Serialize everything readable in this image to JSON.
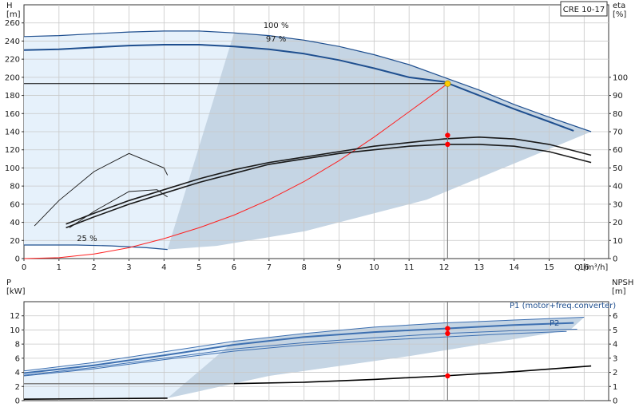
{
  "colors": {
    "background": "#ffffff",
    "grid": "#c8c8c8",
    "axis": "#333333",
    "area_light": "#e6f1fb",
    "area_dark": "#c5d5e4",
    "pump_curve": "#1f4f8f",
    "power_curve": "#3d6fb0",
    "eta_curve": "#1a1a1a",
    "system_curve": "#ff2020",
    "duty_point": "#ffcc00",
    "marker": "#ff0000",
    "guide_line": "#808080"
  },
  "chart_data": [
    {
      "type": "line",
      "id": "head-flow",
      "title": "CRE 10-17",
      "xlabel": "Q [m³/h]",
      "ylabel": "H\n[m]",
      "ylabel_right": "eta\n[%]",
      "xlim": [
        0,
        16.7
      ],
      "ylim": [
        0,
        280
      ],
      "ylim_right": [
        0,
        140
      ],
      "xticks": [
        "0",
        "1",
        "2",
        "3",
        "4",
        "5",
        "6",
        "7",
        "8",
        "9",
        "10",
        "11",
        "12",
        "13",
        "14",
        "15",
        "16"
      ],
      "yticks": [
        "0",
        "20",
        "40",
        "60",
        "80",
        "100",
        "120",
        "140",
        "160",
        "180",
        "200",
        "220",
        "240",
        "260"
      ],
      "yticks_right": [
        "0",
        "10",
        "20",
        "30",
        "40",
        "50",
        "60",
        "70",
        "80",
        "90",
        "100"
      ],
      "grid": true,
      "annotations": [
        "100 %",
        "97 %",
        "25 %"
      ],
      "series": [
        {
          "role": "head-100",
          "label": "100 %",
          "x": [
            0,
            1,
            2,
            3,
            4,
            5,
            6,
            7,
            8,
            9,
            10,
            11,
            12,
            13,
            14,
            15,
            16.2
          ],
          "y": [
            245,
            246,
            248,
            250,
            251,
            251,
            249,
            246,
            241,
            234,
            225,
            214,
            200,
            186,
            170,
            156,
            140
          ]
        },
        {
          "role": "head-97",
          "label": "97 %",
          "x": [
            0,
            1,
            2,
            3,
            4,
            5,
            6,
            7,
            8,
            9,
            10,
            11,
            12,
            13,
            14,
            15,
            15.7
          ],
          "y": [
            230,
            231,
            233,
            235,
            236,
            236,
            234,
            231,
            226,
            219,
            210,
            200,
            195,
            180,
            165,
            151,
            141
          ]
        },
        {
          "role": "head-25",
          "label": "25 %",
          "x": [
            0,
            1.5,
            2.5,
            3.5,
            4.1
          ],
          "y": [
            15,
            15,
            14,
            12,
            10
          ]
        },
        {
          "role": "system-curve",
          "x": [
            0,
            1,
            2,
            3,
            4,
            5,
            6,
            7,
            8,
            9,
            10,
            11,
            12.1
          ],
          "y": [
            0,
            1,
            5,
            12,
            22,
            34,
            48,
            65,
            85,
            108,
            134,
            162,
            193
          ]
        },
        {
          "role": "eta-100",
          "x": [
            1.2,
            2,
            3,
            4,
            5,
            6,
            7,
            8,
            9,
            10,
            11,
            12,
            13,
            14,
            15,
            16.2
          ],
          "y": [
            19,
            25,
            32,
            38,
            44,
            49,
            53,
            56,
            59,
            62,
            64,
            66,
            67,
            66,
            63,
            57
          ]
        },
        {
          "role": "eta-97",
          "x": [
            1.2,
            2,
            3,
            4,
            5,
            6,
            7,
            8,
            9,
            10,
            11,
            12,
            13,
            14,
            15,
            16.2
          ],
          "y": [
            17,
            23,
            30,
            36,
            42,
            47,
            52,
            55,
            58,
            60,
            62,
            63,
            63,
            62,
            59,
            53
          ]
        },
        {
          "role": "eta-partial",
          "x": [
            0.3,
            1,
            2,
            3,
            4,
            4.1
          ],
          "y": [
            18,
            32,
            48,
            58,
            50,
            46
          ]
        },
        {
          "role": "eta-low",
          "x": [
            1.3,
            2,
            3,
            3.8,
            4.1
          ],
          "y": [
            17,
            26,
            37,
            38,
            34
          ]
        }
      ],
      "duty_point": {
        "x": 12.1,
        "y": 193
      },
      "markers": [
        {
          "x": 12.1,
          "y": 136,
          "axis": "right",
          "eta": 68
        },
        {
          "x": 12.1,
          "y": 126,
          "axis": "right",
          "eta": 63
        }
      ]
    },
    {
      "type": "line",
      "id": "power-npsh",
      "ylabel": "P\n[kW]",
      "ylabel_right": "NPSH\n[m]",
      "xlim": [
        0,
        16.7
      ],
      "ylim": [
        0,
        14
      ],
      "ylim_right": [
        0,
        7
      ],
      "yticks": [
        "0",
        "2",
        "4",
        "6",
        "8",
        "10",
        "12"
      ],
      "yticks_right": [
        "0",
        "1",
        "2",
        "3",
        "4",
        "5",
        "6"
      ],
      "grid": true,
      "series": [
        {
          "role": "P1-100",
          "name": "P1 (motor+freq.converter)",
          "x": [
            0,
            2,
            4,
            6,
            8,
            10,
            12,
            14,
            16
          ],
          "y": [
            4.2,
            5.4,
            6.9,
            8.4,
            9.5,
            10.4,
            11.0,
            11.4,
            11.8
          ]
        },
        {
          "role": "P1-97",
          "x": [
            0,
            2,
            4,
            6,
            8,
            10,
            12,
            14,
            15.7
          ],
          "y": [
            3.9,
            5.0,
            6.4,
            7.9,
            9.0,
            9.7,
            10.2,
            10.7,
            11.0
          ]
        },
        {
          "role": "P2",
          "name": "P2",
          "x": [
            0,
            2,
            4,
            6,
            8,
            10,
            12,
            14,
            15.8
          ],
          "y": [
            3.6,
            4.7,
            6.0,
            7.3,
            8.2,
            8.9,
            9.5,
            9.9,
            10.1
          ]
        },
        {
          "role": "P2-97",
          "x": [
            0,
            2,
            4,
            6,
            8,
            10,
            12,
            14,
            15.5
          ],
          "y": [
            3.5,
            4.5,
            5.8,
            7.0,
            7.9,
            8.5,
            9.0,
            9.5,
            9.8
          ]
        },
        {
          "role": "npsh",
          "x": [
            6,
            8,
            10,
            12,
            14,
            16.2
          ],
          "y": [
            1.2,
            1.3,
            1.5,
            1.75,
            2.05,
            2.45
          ]
        },
        {
          "role": "P-25",
          "x": [
            0,
            4.1
          ],
          "y": [
            0.2,
            0.35
          ]
        }
      ],
      "markers": [
        {
          "x": 12.1,
          "y": 10.2
        },
        {
          "x": 12.1,
          "y": 9.5
        },
        {
          "x": 12.1,
          "y": 1.75,
          "axis": "right"
        }
      ]
    }
  ]
}
